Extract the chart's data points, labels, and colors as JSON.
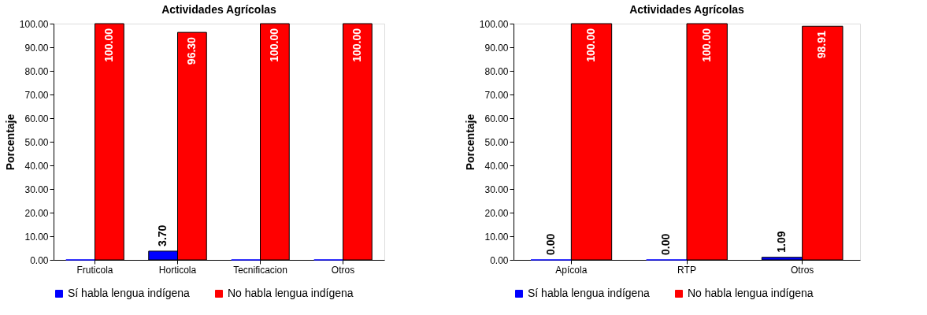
{
  "chart_data": [
    {
      "type": "bar",
      "title": "Actividades Agrícolas",
      "ylabel": "Porcentaje",
      "categories": [
        "Fruticola",
        "Horticola",
        "Tecnificacion",
        "Otros"
      ],
      "series": [
        {
          "name": "Sí habla lengua indígena",
          "color": "#0000ff",
          "values": [
            0,
            3.7,
            0,
            0
          ],
          "value_labels": [
            null,
            "3.70",
            null,
            null
          ]
        },
        {
          "name": "No habla lengua indígena",
          "color": "#ff0000",
          "values": [
            100,
            96.3,
            100,
            100
          ],
          "value_labels": [
            "100.00",
            "96.30",
            "100.00",
            "100.00"
          ]
        }
      ],
      "ylim": [
        0,
        100
      ],
      "yticks": [
        {
          "value": 0,
          "label": "0.00"
        },
        {
          "value": 10,
          "label": "10.00"
        },
        {
          "value": 20,
          "label": "20.00"
        },
        {
          "value": 30,
          "label": "30.00"
        },
        {
          "value": 40,
          "label": "40.00"
        },
        {
          "value": 50,
          "label": "50.00"
        },
        {
          "value": 60,
          "label": "60.00"
        },
        {
          "value": 70,
          "label": "70.00"
        },
        {
          "value": 80,
          "label": "80.00"
        },
        {
          "value": 90,
          "label": "90.00"
        },
        {
          "value": 100,
          "label": "100.00"
        }
      ],
      "grid": false,
      "legend": "bottom"
    },
    {
      "type": "bar",
      "title": "Actividades Agrícolas",
      "ylabel": "Porcentaje",
      "categories": [
        "Apícola",
        "RTP",
        "Otros"
      ],
      "series": [
        {
          "name": "Sí habla lengua indígena",
          "color": "#0000ff",
          "values": [
            0,
            0,
            1.09
          ],
          "value_labels": [
            "0.00",
            "0.00",
            "1.09"
          ]
        },
        {
          "name": "No habla lengua indígena",
          "color": "#ff0000",
          "values": [
            100,
            100,
            98.91
          ],
          "value_labels": [
            "100.00",
            "100.00",
            "98.91"
          ]
        }
      ],
      "ylim": [
        0,
        100
      ],
      "yticks": [
        {
          "value": 0,
          "label": "0.00"
        },
        {
          "value": 10,
          "label": "10.00"
        },
        {
          "value": 20,
          "label": "20.00"
        },
        {
          "value": 30,
          "label": "30.00"
        },
        {
          "value": 40,
          "label": "40.00"
        },
        {
          "value": 50,
          "label": "50.00"
        },
        {
          "value": 60,
          "label": "60.00"
        },
        {
          "value": 70,
          "label": "70.00"
        },
        {
          "value": 80,
          "label": "80.00"
        },
        {
          "value": 90,
          "label": "90.00"
        },
        {
          "value": 100,
          "label": "100.00"
        }
      ],
      "grid": false,
      "legend": "bottom"
    }
  ]
}
